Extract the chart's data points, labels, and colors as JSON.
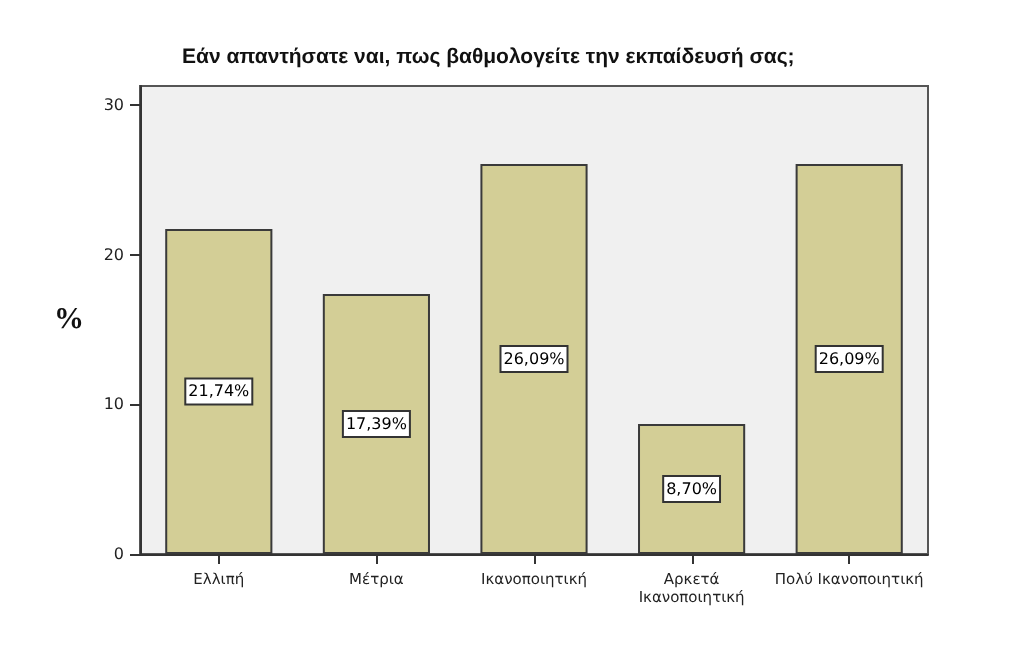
{
  "chart_data": {
    "type": "bar",
    "title": "Εάν απαντήσατε ναι, πως βαθμολογείτε την εκπαίδευσή σας;",
    "ylabel": "%",
    "categories": [
      "Ελλιπή",
      "Μέτρια",
      "Ικανοποιητική",
      "Αρκετά\nΙκανοποιητική",
      "Πολύ Ικανοποιητική"
    ],
    "values": [
      21.74,
      17.39,
      26.09,
      8.7,
      26.09
    ],
    "value_labels": [
      "21,74%",
      "17,39%",
      "26,09%",
      "8,70%",
      "26,09%"
    ],
    "color": "#d3ce96",
    "ylim": [
      0,
      31.3
    ],
    "yticks": [
      0,
      10,
      20,
      30
    ],
    "grid": false
  }
}
